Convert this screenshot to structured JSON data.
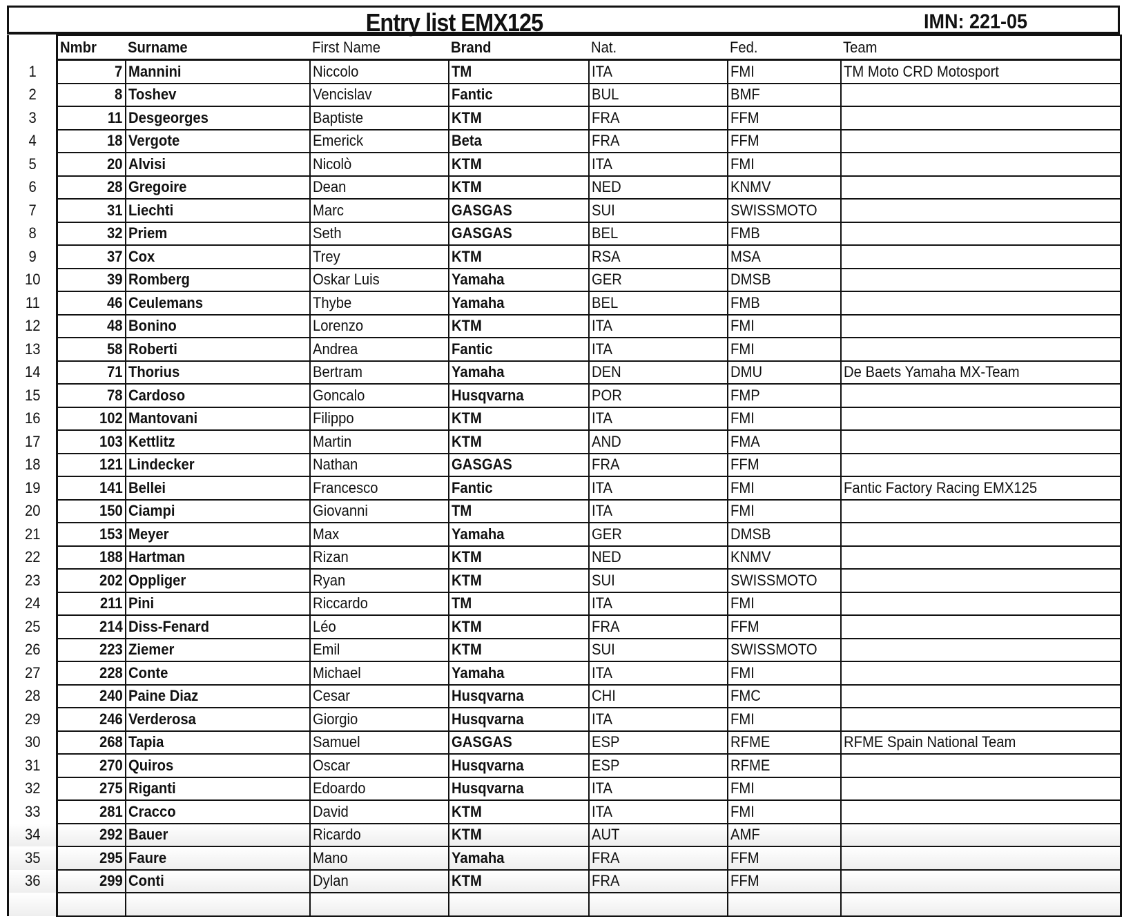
{
  "title": "Entry list EMX125",
  "imn": "IMN: 221-05",
  "headers": {
    "nmbr": "Nmbr",
    "surname": "Surname",
    "first_name": "First Name",
    "brand": "Brand",
    "nat": "Nat.",
    "fed": "Fed.",
    "team": "Team"
  },
  "rows": [
    {
      "idx": "1",
      "nmbr": "7",
      "surname": "Mannini",
      "first": "Niccolo",
      "brand": "TM",
      "nat": "ITA",
      "fed": "FMI",
      "team": "TM Moto CRD Motosport"
    },
    {
      "idx": "2",
      "nmbr": "8",
      "surname": "Toshev",
      "first": "Vencislav",
      "brand": "Fantic",
      "nat": "BUL",
      "fed": "BMF",
      "team": ""
    },
    {
      "idx": "3",
      "nmbr": "11",
      "surname": "Desgeorges",
      "first": "Baptiste",
      "brand": "KTM",
      "nat": "FRA",
      "fed": "FFM",
      "team": ""
    },
    {
      "idx": "4",
      "nmbr": "18",
      "surname": "Vergote",
      "first": "Emerick",
      "brand": "Beta",
      "nat": "FRA",
      "fed": "FFM",
      "team": ""
    },
    {
      "idx": "5",
      "nmbr": "20",
      "surname": "Alvisi",
      "first": "Nicolò",
      "brand": "KTM",
      "nat": "ITA",
      "fed": "FMI",
      "team": ""
    },
    {
      "idx": "6",
      "nmbr": "28",
      "surname": "Gregoire",
      "first": "Dean",
      "brand": "KTM",
      "nat": "NED",
      "fed": "KNMV",
      "team": ""
    },
    {
      "idx": "7",
      "nmbr": "31",
      "surname": "Liechti",
      "first": "Marc",
      "brand": "GASGAS",
      "nat": "SUI",
      "fed": "SWISSMOTO",
      "team": ""
    },
    {
      "idx": "8",
      "nmbr": "32",
      "surname": "Priem",
      "first": "Seth",
      "brand": "GASGAS",
      "nat": "BEL",
      "fed": "FMB",
      "team": ""
    },
    {
      "idx": "9",
      "nmbr": "37",
      "surname": "Cox",
      "first": "Trey",
      "brand": "KTM",
      "nat": "RSA",
      "fed": "MSA",
      "team": ""
    },
    {
      "idx": "10",
      "nmbr": "39",
      "surname": "Romberg",
      "first": "Oskar Luis",
      "brand": "Yamaha",
      "nat": "GER",
      "fed": "DMSB",
      "team": ""
    },
    {
      "idx": "11",
      "nmbr": "46",
      "surname": "Ceulemans",
      "first": "Thybe",
      "brand": "Yamaha",
      "nat": "BEL",
      "fed": "FMB",
      "team": ""
    },
    {
      "idx": "12",
      "nmbr": "48",
      "surname": "Bonino",
      "first": "Lorenzo",
      "brand": "KTM",
      "nat": "ITA",
      "fed": "FMI",
      "team": ""
    },
    {
      "idx": "13",
      "nmbr": "58",
      "surname": "Roberti",
      "first": "Andrea",
      "brand": "Fantic",
      "nat": "ITA",
      "fed": "FMI",
      "team": ""
    },
    {
      "idx": "14",
      "nmbr": "71",
      "surname": "Thorius",
      "first": "Bertram",
      "brand": "Yamaha",
      "nat": "DEN",
      "fed": "DMU",
      "team": "De Baets Yamaha MX-Team"
    },
    {
      "idx": "15",
      "nmbr": "78",
      "surname": "Cardoso",
      "first": "Goncalo",
      "brand": "Husqvarna",
      "nat": "POR",
      "fed": "FMP",
      "team": ""
    },
    {
      "idx": "16",
      "nmbr": "102",
      "surname": "Mantovani",
      "first": "Filippo",
      "brand": "KTM",
      "nat": "ITA",
      "fed": "FMI",
      "team": ""
    },
    {
      "idx": "17",
      "nmbr": "103",
      "surname": "Kettlitz",
      "first": "Martin",
      "brand": "KTM",
      "nat": "AND",
      "fed": "FMA",
      "team": ""
    },
    {
      "idx": "18",
      "nmbr": "121",
      "surname": "Lindecker",
      "first": "Nathan",
      "brand": "GASGAS",
      "nat": "FRA",
      "fed": "FFM",
      "team": ""
    },
    {
      "idx": "19",
      "nmbr": "141",
      "surname": "Bellei",
      "first": "Francesco",
      "brand": "Fantic",
      "nat": "ITA",
      "fed": "FMI",
      "team": "Fantic Factory Racing EMX125"
    },
    {
      "idx": "20",
      "nmbr": "150",
      "surname": "Ciampi",
      "first": "Giovanni",
      "brand": "TM",
      "nat": "ITA",
      "fed": "FMI",
      "team": ""
    },
    {
      "idx": "21",
      "nmbr": "153",
      "surname": "Meyer",
      "first": "Max",
      "brand": "Yamaha",
      "nat": "GER",
      "fed": "DMSB",
      "team": ""
    },
    {
      "idx": "22",
      "nmbr": "188",
      "surname": "Hartman",
      "first": "Rizan",
      "brand": "KTM",
      "nat": "NED",
      "fed": "KNMV",
      "team": ""
    },
    {
      "idx": "23",
      "nmbr": "202",
      "surname": "Oppliger",
      "first": "Ryan",
      "brand": "KTM",
      "nat": "SUI",
      "fed": "SWISSMOTO",
      "team": ""
    },
    {
      "idx": "24",
      "nmbr": "211",
      "surname": "Pini",
      "first": "Riccardo",
      "brand": "TM",
      "nat": "ITA",
      "fed": "FMI",
      "team": ""
    },
    {
      "idx": "25",
      "nmbr": "214",
      "surname": "Diss-Fenard",
      "first": "Léo",
      "brand": "KTM",
      "nat": "FRA",
      "fed": "FFM",
      "team": ""
    },
    {
      "idx": "26",
      "nmbr": "223",
      "surname": "Ziemer",
      "first": "Emil",
      "brand": "KTM",
      "nat": "SUI",
      "fed": "SWISSMOTO",
      "team": ""
    },
    {
      "idx": "27",
      "nmbr": "228",
      "surname": "Conte",
      "first": "Michael",
      "brand": "Yamaha",
      "nat": "ITA",
      "fed": "FMI",
      "team": ""
    },
    {
      "idx": "28",
      "nmbr": "240",
      "surname": "Paine Diaz",
      "first": "Cesar",
      "brand": "Husqvarna",
      "nat": "CHI",
      "fed": "FMC",
      "team": ""
    },
    {
      "idx": "29",
      "nmbr": "246",
      "surname": "Verderosa",
      "first": "Giorgio",
      "brand": "Husqvarna",
      "nat": "ITA",
      "fed": "FMI",
      "team": ""
    },
    {
      "idx": "30",
      "nmbr": "268",
      "surname": "Tapia",
      "first": "Samuel",
      "brand": "GASGAS",
      "nat": "ESP",
      "fed": "RFME",
      "team": "RFME Spain National Team"
    },
    {
      "idx": "31",
      "nmbr": "270",
      "surname": "Quiros",
      "first": "Oscar",
      "brand": "Husqvarna",
      "nat": "ESP",
      "fed": "RFME",
      "team": ""
    },
    {
      "idx": "32",
      "nmbr": "275",
      "surname": "Riganti",
      "first": "Edoardo",
      "brand": "Husqvarna",
      "nat": "ITA",
      "fed": "FMI",
      "team": ""
    },
    {
      "idx": "33",
      "nmbr": "281",
      "surname": "Cracco",
      "first": "David",
      "brand": "KTM",
      "nat": "ITA",
      "fed": "FMI",
      "team": ""
    },
    {
      "idx": "34",
      "nmbr": "292",
      "surname": "Bauer",
      "first": "Ricardo",
      "brand": "KTM",
      "nat": "AUT",
      "fed": "AMF",
      "team": ""
    },
    {
      "idx": "35",
      "nmbr": "295",
      "surname": "Faure",
      "first": "Mano",
      "brand": "Yamaha",
      "nat": "FRA",
      "fed": "FFM",
      "team": ""
    },
    {
      "idx": "36",
      "nmbr": "299",
      "surname": "Conti",
      "first": "Dylan",
      "brand": "KTM",
      "nat": "FRA",
      "fed": "FFM",
      "team": ""
    }
  ]
}
